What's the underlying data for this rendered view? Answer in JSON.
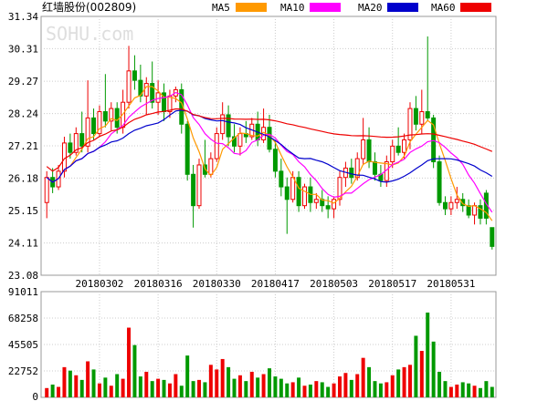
{
  "header": {
    "title": "红墙股份(002809)",
    "legend": [
      {
        "label": "MA5",
        "color": "#ff9900"
      },
      {
        "label": "MA10",
        "color": "#ff00ff"
      },
      {
        "label": "MA20",
        "color": "#0000cc"
      },
      {
        "label": "MA60",
        "color": "#ee0000"
      }
    ]
  },
  "watermark": "SOHU.com",
  "colors": {
    "up": "#ee0000",
    "down": "#009900",
    "grid": "#cccccc",
    "border": "#999999",
    "text": "#000000",
    "volume_bar": "#ee0000"
  },
  "chart_data": [
    {
      "type": "candlestick",
      "title": "",
      "y_ticks": [
        "31.34",
        "30.31",
        "29.27",
        "28.24",
        "27.21",
        "26.18",
        "25.15",
        "24.11",
        "23.08"
      ],
      "ylim": [
        23.08,
        31.34
      ],
      "x_tick_labels": [
        "20180302",
        "20180316",
        "20180330",
        "20180417",
        "20180503",
        "20180517",
        "20180531"
      ],
      "x_tick_indices": [
        9,
        19,
        29,
        39,
        49,
        59,
        69
      ],
      "candles": [
        {
          "o": 25.4,
          "h": 26.4,
          "l": 24.9,
          "c": 26.2
        },
        {
          "o": 26.2,
          "h": 26.5,
          "l": 25.7,
          "c": 25.9
        },
        {
          "o": 25.9,
          "h": 26.6,
          "l": 25.8,
          "c": 26.4
        },
        {
          "o": 26.4,
          "h": 27.5,
          "l": 26.2,
          "c": 27.3
        },
        {
          "o": 27.3,
          "h": 27.6,
          "l": 26.8,
          "c": 27.0
        },
        {
          "o": 27.0,
          "h": 27.8,
          "l": 26.9,
          "c": 27.6
        },
        {
          "o": 27.6,
          "h": 28.3,
          "l": 27.0,
          "c": 27.2
        },
        {
          "o": 27.2,
          "h": 29.3,
          "l": 27.0,
          "c": 28.1
        },
        {
          "o": 28.1,
          "h": 28.4,
          "l": 27.4,
          "c": 27.6
        },
        {
          "o": 27.6,
          "h": 28.5,
          "l": 27.5,
          "c": 28.3
        },
        {
          "o": 28.3,
          "h": 29.5,
          "l": 27.8,
          "c": 28.0
        },
        {
          "o": 28.0,
          "h": 28.6,
          "l": 27.7,
          "c": 28.4
        },
        {
          "o": 28.4,
          "h": 28.6,
          "l": 27.6,
          "c": 27.8
        },
        {
          "o": 27.8,
          "h": 29.0,
          "l": 27.6,
          "c": 28.6
        },
        {
          "o": 28.6,
          "h": 30.4,
          "l": 28.4,
          "c": 29.6
        },
        {
          "o": 29.6,
          "h": 30.1,
          "l": 29.0,
          "c": 29.3
        },
        {
          "o": 29.3,
          "h": 29.8,
          "l": 28.6,
          "c": 28.8
        },
        {
          "o": 28.8,
          "h": 29.4,
          "l": 28.2,
          "c": 29.2
        },
        {
          "o": 29.2,
          "h": 29.9,
          "l": 28.4,
          "c": 28.6
        },
        {
          "o": 28.6,
          "h": 29.3,
          "l": 28.2,
          "c": 28.9
        },
        {
          "o": 28.9,
          "h": 29.2,
          "l": 28.0,
          "c": 28.3
        },
        {
          "o": 28.3,
          "h": 29.0,
          "l": 28.1,
          "c": 28.8
        },
        {
          "o": 28.8,
          "h": 29.1,
          "l": 28.6,
          "c": 29.0
        },
        {
          "o": 29.0,
          "h": 29.2,
          "l": 27.6,
          "c": 27.9
        },
        {
          "o": 27.9,
          "h": 28.0,
          "l": 26.1,
          "c": 26.3
        },
        {
          "o": 26.3,
          "h": 26.6,
          "l": 24.6,
          "c": 25.3
        },
        {
          "o": 25.3,
          "h": 26.8,
          "l": 25.2,
          "c": 26.6
        },
        {
          "o": 26.6,
          "h": 27.4,
          "l": 26.2,
          "c": 26.3
        },
        {
          "o": 26.3,
          "h": 27.0,
          "l": 26.2,
          "c": 26.8
        },
        {
          "o": 26.8,
          "h": 27.8,
          "l": 26.7,
          "c": 27.6
        },
        {
          "o": 27.6,
          "h": 28.6,
          "l": 27.4,
          "c": 28.2
        },
        {
          "o": 28.2,
          "h": 28.5,
          "l": 27.2,
          "c": 27.5
        },
        {
          "o": 27.5,
          "h": 27.9,
          "l": 27.0,
          "c": 27.2
        },
        {
          "o": 27.2,
          "h": 27.8,
          "l": 26.9,
          "c": 27.6
        },
        {
          "o": 27.6,
          "h": 28.0,
          "l": 27.3,
          "c": 27.5
        },
        {
          "o": 27.5,
          "h": 28.1,
          "l": 27.4,
          "c": 27.9
        },
        {
          "o": 27.9,
          "h": 28.3,
          "l": 27.2,
          "c": 27.4
        },
        {
          "o": 27.4,
          "h": 28.4,
          "l": 27.3,
          "c": 27.8
        },
        {
          "o": 27.8,
          "h": 28.2,
          "l": 27.0,
          "c": 27.1
        },
        {
          "o": 27.1,
          "h": 27.4,
          "l": 26.2,
          "c": 26.4
        },
        {
          "o": 26.4,
          "h": 26.8,
          "l": 25.6,
          "c": 25.9
        },
        {
          "o": 25.9,
          "h": 26.2,
          "l": 24.4,
          "c": 25.5
        },
        {
          "o": 25.5,
          "h": 26.4,
          "l": 25.4,
          "c": 26.2
        },
        {
          "o": 26.2,
          "h": 26.4,
          "l": 25.1,
          "c": 25.3
        },
        {
          "o": 25.3,
          "h": 26.0,
          "l": 25.2,
          "c": 25.9
        },
        {
          "o": 25.9,
          "h": 26.2,
          "l": 25.1,
          "c": 25.4
        },
        {
          "o": 25.4,
          "h": 25.7,
          "l": 25.2,
          "c": 25.5
        },
        {
          "o": 25.5,
          "h": 25.8,
          "l": 25.1,
          "c": 25.3
        },
        {
          "o": 25.3,
          "h": 25.6,
          "l": 24.9,
          "c": 25.2
        },
        {
          "o": 25.2,
          "h": 25.6,
          "l": 24.9,
          "c": 25.5
        },
        {
          "o": 25.5,
          "h": 26.4,
          "l": 25.3,
          "c": 26.2
        },
        {
          "o": 26.2,
          "h": 26.7,
          "l": 25.9,
          "c": 26.5
        },
        {
          "o": 26.5,
          "h": 26.8,
          "l": 26.0,
          "c": 26.2
        },
        {
          "o": 26.2,
          "h": 27.0,
          "l": 26.1,
          "c": 26.8
        },
        {
          "o": 26.8,
          "h": 28.1,
          "l": 26.6,
          "c": 27.4
        },
        {
          "o": 27.4,
          "h": 27.8,
          "l": 26.5,
          "c": 26.7
        },
        {
          "o": 26.7,
          "h": 27.0,
          "l": 26.1,
          "c": 26.3
        },
        {
          "o": 26.3,
          "h": 26.6,
          "l": 25.9,
          "c": 26.1
        },
        {
          "o": 26.1,
          "h": 26.9,
          "l": 25.9,
          "c": 26.7
        },
        {
          "o": 26.7,
          "h": 27.4,
          "l": 26.5,
          "c": 27.2
        },
        {
          "o": 27.2,
          "h": 27.8,
          "l": 26.9,
          "c": 27.0
        },
        {
          "o": 27.0,
          "h": 27.6,
          "l": 26.8,
          "c": 27.4
        },
        {
          "o": 27.4,
          "h": 28.6,
          "l": 27.1,
          "c": 28.4
        },
        {
          "o": 28.4,
          "h": 28.8,
          "l": 27.7,
          "c": 27.9
        },
        {
          "o": 27.9,
          "h": 29.0,
          "l": 27.6,
          "c": 28.3
        },
        {
          "o": 28.3,
          "h": 30.7,
          "l": 28.0,
          "c": 28.1
        },
        {
          "o": 28.1,
          "h": 28.2,
          "l": 26.5,
          "c": 26.7
        },
        {
          "o": 26.7,
          "h": 26.9,
          "l": 25.3,
          "c": 25.4
        },
        {
          "o": 25.4,
          "h": 25.6,
          "l": 25.0,
          "c": 25.2
        },
        {
          "o": 25.2,
          "h": 25.6,
          "l": 25.0,
          "c": 25.4
        },
        {
          "o": 25.4,
          "h": 25.9,
          "l": 25.2,
          "c": 25.5
        },
        {
          "o": 25.5,
          "h": 25.7,
          "l": 25.1,
          "c": 25.3
        },
        {
          "o": 25.3,
          "h": 25.5,
          "l": 24.9,
          "c": 25.0
        },
        {
          "o": 25.0,
          "h": 25.4,
          "l": 24.7,
          "c": 25.3
        },
        {
          "o": 25.3,
          "h": 25.5,
          "l": 24.7,
          "c": 24.9
        },
        {
          "o": 25.7,
          "h": 25.8,
          "l": 24.7,
          "c": 24.9
        },
        {
          "o": 24.6,
          "h": 24.6,
          "l": 23.9,
          "c": 24.0
        }
      ]
    },
    {
      "type": "bar",
      "title": "",
      "y_ticks": [
        "91011",
        "68258",
        "45505",
        "22752",
        "0"
      ],
      "ylim": [
        0,
        91011
      ],
      "values": [
        8000,
        11000,
        9000,
        26000,
        23000,
        19000,
        15000,
        31000,
        24000,
        12000,
        17000,
        10000,
        20000,
        16000,
        60000,
        45000,
        18000,
        22000,
        14000,
        16000,
        15000,
        12000,
        20000,
        10000,
        36000,
        14000,
        15000,
        13000,
        28000,
        24000,
        33000,
        26000,
        16000,
        19000,
        14000,
        22000,
        17000,
        20000,
        25000,
        18000,
        16000,
        12000,
        13000,
        17000,
        10000,
        11000,
        14000,
        13000,
        9000,
        12000,
        18000,
        21000,
        15000,
        20000,
        34000,
        26000,
        14000,
        12000,
        13000,
        19000,
        24000,
        26000,
        28000,
        53000,
        40000,
        73000,
        48000,
        22000,
        14000,
        9000,
        11000,
        13000,
        12000,
        10000,
        8000,
        14000,
        9000
      ]
    }
  ]
}
